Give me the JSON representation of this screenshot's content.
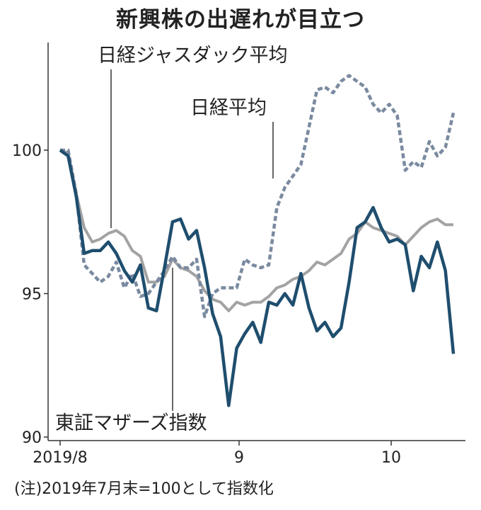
{
  "chart_data": {
    "type": "line",
    "title": "新興株の出遅れが目立つ",
    "note": "(注)2019年7月末=100として指数化",
    "ylim": [
      90,
      104
    ],
    "yticks": [
      90,
      95,
      100
    ],
    "xticks": [
      "2019/8",
      "9",
      "10"
    ],
    "grid": false,
    "legend": "inline labels",
    "series": [
      {
        "name": "日経平均",
        "color": "#7a8aa0",
        "style": "dashed",
        "values": [
          100.0,
          100.0,
          98.5,
          96.0,
          95.7,
          95.4,
          95.6,
          96.1,
          95.2,
          95.7,
          94.9,
          95.0,
          95.4,
          95.8,
          96.3,
          95.9,
          95.9,
          96.2,
          94.2,
          95.0,
          95.2,
          95.2,
          95.2,
          96.2,
          96.0,
          95.9,
          96.0,
          98.0,
          98.7,
          99.1,
          99.5,
          100.8,
          102.1,
          102.2,
          102.0,
          102.4,
          102.6,
          102.4,
          102.2,
          101.6,
          101.3,
          101.6,
          101.2,
          99.3,
          99.6,
          99.4,
          100.3,
          99.8,
          100.1,
          101.3
        ]
      },
      {
        "name": "日経ジャスダック平均",
        "color": "#a3a3a3",
        "style": "solid",
        "values": [
          100.0,
          99.9,
          98.5,
          97.3,
          96.8,
          96.9,
          97.1,
          97.2,
          97.0,
          96.5,
          96.3,
          95.4,
          95.4,
          95.6,
          96.2,
          95.9,
          95.8,
          95.6,
          95.1,
          94.8,
          94.7,
          94.4,
          94.7,
          94.6,
          94.7,
          94.7,
          94.9,
          95.2,
          95.3,
          95.5,
          95.6,
          95.8,
          96.1,
          96.0,
          96.2,
          96.4,
          96.9,
          97.1,
          97.5,
          97.3,
          97.2,
          97.1,
          97.0,
          96.7,
          97.0,
          97.3,
          97.5,
          97.6,
          97.4,
          97.4
        ]
      },
      {
        "name": "東証マザーズ指数",
        "color": "#1f4e6e",
        "style": "solid",
        "values": [
          100.0,
          99.8,
          98.4,
          96.4,
          96.5,
          96.5,
          96.8,
          96.4,
          95.8,
          95.4,
          96.0,
          94.5,
          94.4,
          95.9,
          97.5,
          97.6,
          96.9,
          97.2,
          95.9,
          94.3,
          93.5,
          91.1,
          93.1,
          93.6,
          94.0,
          93.3,
          94.7,
          94.6,
          95.0,
          94.6,
          95.7,
          94.5,
          93.7,
          94.0,
          93.5,
          93.8,
          95.4,
          97.3,
          97.5,
          98.0,
          97.3,
          96.8,
          96.9,
          96.7,
          95.1,
          96.3,
          95.9,
          96.8,
          95.8,
          92.9
        ]
      }
    ],
    "annotations": [
      {
        "series": "日経ジャスダック平均",
        "text": "日経ジャスダック平均",
        "index": 7
      },
      {
        "series": "日経平均",
        "text": "日経平均",
        "index": 29
      },
      {
        "series": "東証マザーズ指数",
        "text": "東証マザーズ指数",
        "index": 16
      }
    ]
  }
}
